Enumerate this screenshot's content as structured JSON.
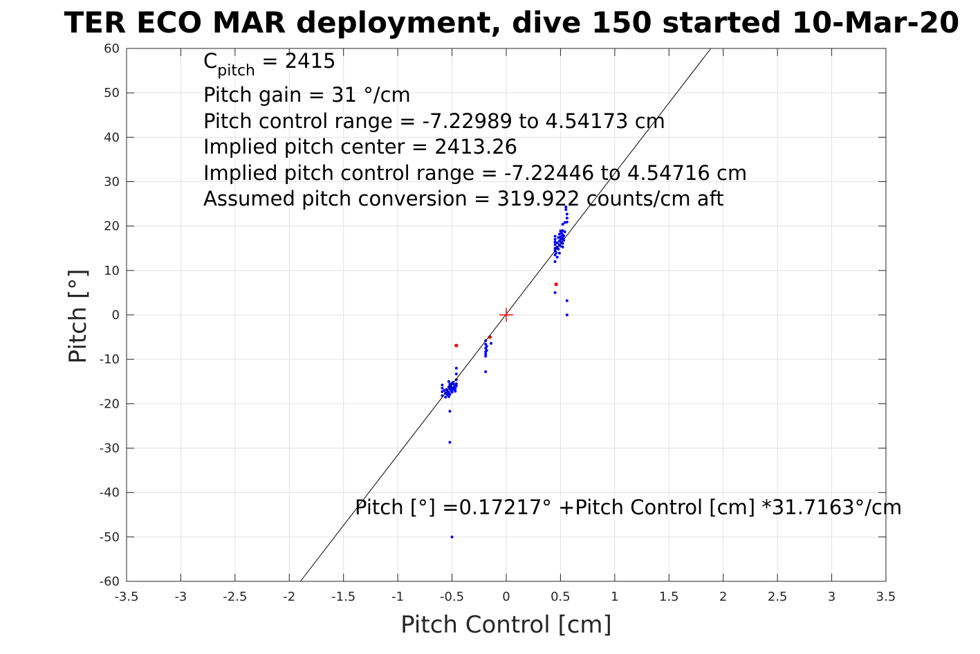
{
  "chart_data": {
    "type": "scatter",
    "title": "TER ECO MAR deployment, dive 150 started 10-Mar-20",
    "xlabel": "Pitch Control [cm]",
    "ylabel": "Pitch [°]",
    "xlim": [
      -3.5,
      3.5
    ],
    "ylim": [
      -60,
      60
    ],
    "xticks": [
      "-3.5",
      "-3",
      "-2.5",
      "-2",
      "-1.5",
      "-1",
      "-0.5",
      "0",
      "0.5",
      "1",
      "1.5",
      "2",
      "2.5",
      "3",
      "3.5"
    ],
    "yticks": [
      "60",
      "50",
      "40",
      "30",
      "20",
      "10",
      "0",
      "-10",
      "-20",
      "-30",
      "-40",
      "-50",
      "-60"
    ],
    "grid": true,
    "fit_line": {
      "intercept": 0.17217,
      "slope": 31.7163
    },
    "center_marker": {
      "x": 0,
      "y": 0,
      "color": "#ff0000"
    },
    "annotations": {
      "c_pitch_base": "C",
      "c_pitch_sub": "pitch",
      "c_pitch_value": " = 2415",
      "lines": [
        "Pitch gain = 31 °/cm",
        "Pitch control range = -7.22989 to 4.54173 cm",
        "Implied pitch center = 2413.26",
        "Implied pitch control range = -7.22446 to 4.54716 cm",
        "Assumed pitch conversion = 319.922 counts/cm aft"
      ],
      "equation": "Pitch [°] =0.17217° +Pitch Control [cm] *31.7163°/cm"
    },
    "series": [
      {
        "color": "#0000ff",
        "points": [
          [
            -0.59,
            -15.8
          ],
          [
            -0.59,
            -16.5
          ],
          [
            -0.59,
            -17.3
          ],
          [
            -0.59,
            -18.2
          ],
          [
            -0.57,
            -17.0
          ],
          [
            -0.56,
            -17.6
          ],
          [
            -0.56,
            -18.5
          ],
          [
            -0.55,
            -16.8
          ],
          [
            -0.55,
            -17.8
          ],
          [
            -0.54,
            -18.0
          ],
          [
            -0.54,
            -17.2
          ],
          [
            -0.53,
            -15.0
          ],
          [
            -0.53,
            -16.2
          ],
          [
            -0.53,
            -17.5
          ],
          [
            -0.53,
            -18.4
          ],
          [
            -0.52,
            -15.6
          ],
          [
            -0.52,
            -16.6
          ],
          [
            -0.52,
            -17.9
          ],
          [
            -0.51,
            -16.0
          ],
          [
            -0.51,
            -17.0
          ],
          [
            -0.5,
            -15.4
          ],
          [
            -0.5,
            -16.4
          ],
          [
            -0.5,
            -17.4
          ],
          [
            -0.49,
            -15.2
          ],
          [
            -0.49,
            -16.8
          ],
          [
            -0.48,
            -15.7
          ],
          [
            -0.48,
            -16.3
          ],
          [
            -0.47,
            -16.6
          ],
          [
            -0.47,
            -17.2
          ],
          [
            -0.46,
            -15.5
          ],
          [
            -0.46,
            -16.0
          ],
          [
            -0.46,
            -14.6
          ],
          [
            -0.46,
            -13.3
          ],
          [
            -0.46,
            -12.0
          ],
          [
            -0.52,
            -21.7
          ],
          [
            -0.52,
            -28.7
          ],
          [
            -0.5,
            -50.0
          ],
          [
            -0.19,
            -5.8
          ],
          [
            -0.19,
            -6.6
          ],
          [
            -0.19,
            -7.5
          ],
          [
            -0.19,
            -8.3
          ],
          [
            -0.19,
            -8.8
          ],
          [
            -0.19,
            -9.3
          ],
          [
            -0.18,
            -7.1
          ],
          [
            -0.18,
            -8.0
          ],
          [
            -0.14,
            -6.4
          ],
          [
            -0.19,
            -12.8
          ],
          [
            0.45,
            12.0
          ],
          [
            0.45,
            13.5
          ],
          [
            0.45,
            14.5
          ],
          [
            0.45,
            15.0
          ],
          [
            0.45,
            15.8
          ],
          [
            0.45,
            16.4
          ],
          [
            0.45,
            17.0
          ],
          [
            0.45,
            17.7
          ],
          [
            0.46,
            14.0
          ],
          [
            0.47,
            13.0
          ],
          [
            0.47,
            15.3
          ],
          [
            0.47,
            16.2
          ],
          [
            0.48,
            14.8
          ],
          [
            0.48,
            17.4
          ],
          [
            0.49,
            13.9
          ],
          [
            0.49,
            15.8
          ],
          [
            0.49,
            16.6
          ],
          [
            0.49,
            18.2
          ],
          [
            0.5,
            15.5
          ],
          [
            0.5,
            16.9
          ],
          [
            0.5,
            17.6
          ],
          [
            0.5,
            18.9
          ],
          [
            0.51,
            16.3
          ],
          [
            0.51,
            17.1
          ],
          [
            0.51,
            18.4
          ],
          [
            0.52,
            15.3
          ],
          [
            0.52,
            16.1
          ],
          [
            0.52,
            17.3
          ],
          [
            0.52,
            18.0
          ],
          [
            0.52,
            19.0
          ],
          [
            0.52,
            20.4
          ],
          [
            0.53,
            16.8
          ],
          [
            0.53,
            17.8
          ],
          [
            0.54,
            20.8
          ],
          [
            0.54,
            18.7
          ],
          [
            0.55,
            23.7
          ],
          [
            0.55,
            24.3
          ],
          [
            0.56,
            21.8
          ],
          [
            0.56,
            22.7
          ],
          [
            0.56,
            20.9
          ],
          [
            0.56,
            3.2
          ],
          [
            0.56,
            0.0
          ],
          [
            0.45,
            5.0
          ]
        ]
      },
      {
        "color": "#ff0000",
        "points": [
          [
            -0.46,
            -6.9
          ],
          [
            -0.15,
            -5.0
          ],
          [
            0.46,
            6.9
          ]
        ]
      }
    ]
  }
}
